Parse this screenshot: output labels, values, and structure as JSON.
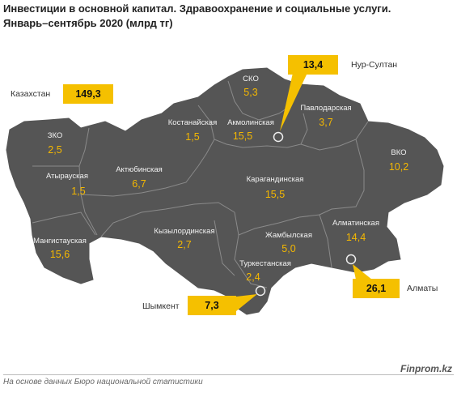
{
  "title_line1": "Инвестиции в основной капитал. Здравоохранение и социальные услуги.",
  "title_line2": "Январь–сентябрь 2020  (млрд тг)",
  "country": {
    "label": "Казахстан",
    "value": "149,3"
  },
  "cities": [
    {
      "name": "Нур-Султан",
      "value": "13,4"
    },
    {
      "name": "Алматы",
      "value": "26,1"
    },
    {
      "name": "Шымкент",
      "value": "7,3"
    }
  ],
  "regions": [
    {
      "name": "СКО",
      "value": "5,3"
    },
    {
      "name": "Павлодарская",
      "value": "3,7"
    },
    {
      "name": "Костанайская",
      "value": "1,5"
    },
    {
      "name": "Акмолинская",
      "value": "15,5"
    },
    {
      "name": "ЗКО",
      "value": "2,5"
    },
    {
      "name": "ВКО",
      "value": "10,2"
    },
    {
      "name": "Актюбинская",
      "value": "6,7"
    },
    {
      "name": "Атырауская",
      "value": "1,5"
    },
    {
      "name": "Карагандинская",
      "value": "15,5"
    },
    {
      "name": "Кызылординская",
      "value": "2,7"
    },
    {
      "name": "Жамбылская",
      "value": "5,0"
    },
    {
      "name": "Алматинская",
      "value": "14,4"
    },
    {
      "name": "Мангистауская",
      "value": "15,6"
    },
    {
      "name": "Туркестанская",
      "value": "2,4"
    }
  ],
  "source": "На основе данных Бюро национальной статистики",
  "brand": "Finprom.kz",
  "colors": {
    "map_fill": "#555555",
    "border": "#8a8a8a",
    "value": "#f5b800",
    "callout": "#f5c000"
  }
}
